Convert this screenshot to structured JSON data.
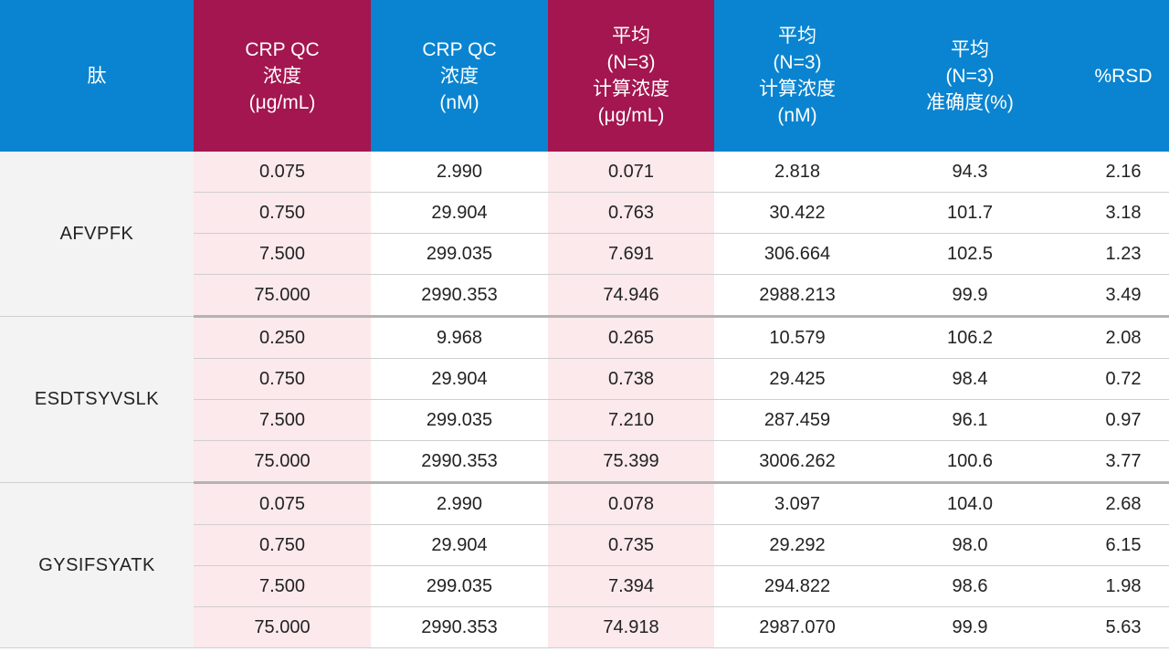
{
  "table": {
    "headers": [
      {
        "lines": [
          "肽"
        ],
        "highlight": false
      },
      {
        "lines": [
          "CRP QC",
          "浓度",
          "(μg/mL)"
        ],
        "highlight": true
      },
      {
        "lines": [
          "CRP QC",
          "浓度",
          "(nM)"
        ],
        "highlight": false
      },
      {
        "lines": [
          "平均",
          "(N=3)",
          "计算浓度",
          "(μg/mL)"
        ],
        "highlight": true
      },
      {
        "lines": [
          "平均",
          "(N=3)",
          "计算浓度",
          "(nM)"
        ],
        "highlight": false
      },
      {
        "lines": [
          "平均",
          "(N=3)",
          "准确度(%)"
        ],
        "highlight": false
      },
      {
        "lines": [
          "%RSD"
        ],
        "highlight": false
      }
    ],
    "groups": [
      {
        "peptide": "AFVPFK",
        "rows": [
          [
            "0.075",
            "2.990",
            "0.071",
            "2.818",
            "94.3",
            "2.16"
          ],
          [
            "0.750",
            "29.904",
            "0.763",
            "30.422",
            "101.7",
            "3.18"
          ],
          [
            "7.500",
            "299.035",
            "7.691",
            "306.664",
            "102.5",
            "1.23"
          ],
          [
            "75.000",
            "2990.353",
            "74.946",
            "2988.213",
            "99.9",
            "3.49"
          ]
        ]
      },
      {
        "peptide": "ESDTSYVSLK",
        "rows": [
          [
            "0.250",
            "9.968",
            "0.265",
            "10.579",
            "106.2",
            "2.08"
          ],
          [
            "0.750",
            "29.904",
            "0.738",
            "29.425",
            "98.4",
            "0.72"
          ],
          [
            "7.500",
            "299.035",
            "7.210",
            "287.459",
            "96.1",
            "0.97"
          ],
          [
            "75.000",
            "2990.353",
            "75.399",
            "3006.262",
            "100.6",
            "3.77"
          ]
        ]
      },
      {
        "peptide": "GYSIFSYATK",
        "rows": [
          [
            "0.075",
            "2.990",
            "0.078",
            "3.097",
            "104.0",
            "2.68"
          ],
          [
            "0.750",
            "29.904",
            "0.735",
            "29.292",
            "98.0",
            "6.15"
          ],
          [
            "7.500",
            "299.035",
            "7.394",
            "294.822",
            "98.6",
            "1.98"
          ],
          [
            "75.000",
            "2990.353",
            "74.918",
            "2987.070",
            "99.9",
            "5.63"
          ]
        ]
      }
    ]
  },
  "colors": {
    "header_blue": "#0a84d0",
    "header_magenta": "#a3164f",
    "highlight_cell": "#fbe9ec",
    "peptide_cell": "#f3f3f4"
  }
}
